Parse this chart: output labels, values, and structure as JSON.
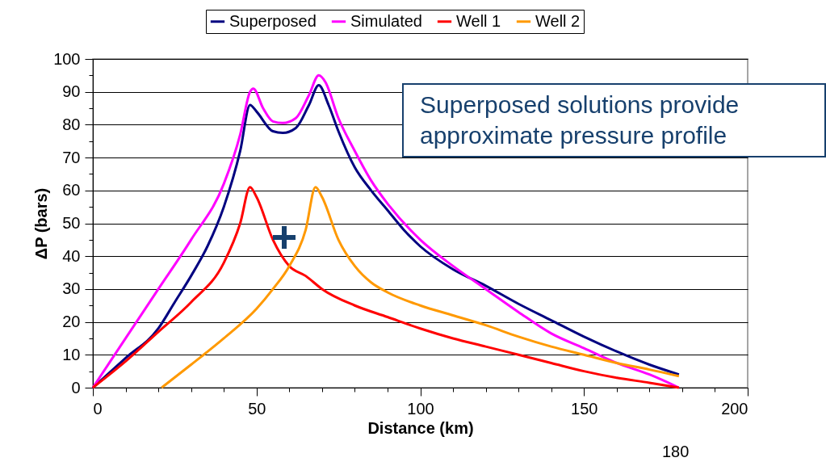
{
  "chart_data": {
    "type": "line",
    "xlabel": "Distance (km)",
    "ylabel": "ΔP (bars)",
    "xlim": [
      0,
      200
    ],
    "ylim": [
      0,
      100
    ],
    "xticks": [
      0,
      {
        "value": 10,
        "label": null
      },
      {
        "value": 20,
        "label": null
      },
      {
        "value": 30,
        "label": null
      },
      {
        "value": 40,
        "label": null
      },
      50,
      {
        "value": 60,
        "label": null
      },
      {
        "value": 70,
        "label": null
      },
      {
        "value": 80,
        "label": null
      },
      {
        "value": 90,
        "label": null
      },
      100,
      {
        "value": 110,
        "label": null
      },
      {
        "value": 120,
        "label": null
      },
      {
        "value": 130,
        "label": null
      },
      {
        "value": 140,
        "label": null
      },
      150,
      {
        "value": 160,
        "label": null
      },
      {
        "value": 170,
        "label": null
      },
      {
        "value": 180,
        "label": null
      },
      {
        "value": 190,
        "label": null
      },
      200
    ],
    "yticks": [
      0,
      {
        "value": 5,
        "label": null
      },
      10,
      {
        "value": 15,
        "label": null
      },
      20,
      {
        "value": 25,
        "label": null
      },
      30,
      {
        "value": 35,
        "label": null
      },
      40,
      {
        "value": 45,
        "label": null
      },
      50,
      {
        "value": 55,
        "label": null
      },
      60,
      {
        "value": 65,
        "label": null
      },
      70,
      {
        "value": 75,
        "label": null
      },
      80,
      {
        "value": 85,
        "label": null
      },
      90,
      {
        "value": 95,
        "label": null
      },
      100
    ],
    "grid": "y",
    "legend": "top",
    "marker": "none",
    "line_style": "solid",
    "annotations": [
      "Superposed solutions provide approximate pressure profile",
      "180"
    ],
    "series": [
      {
        "name": "Superposed",
        "color": "#000080",
        "x": [
          0,
          10,
          20,
          25,
          30,
          35,
          40,
          45,
          48,
          50,
          55,
          58,
          62,
          66,
          69,
          72,
          75,
          80,
          85,
          90,
          95,
          100,
          110,
          120,
          130,
          140,
          150,
          160,
          170,
          179
        ],
        "values": [
          0,
          9,
          18,
          26,
          34,
          43,
          55,
          72,
          86,
          84,
          78,
          77.5,
          79,
          86,
          92,
          86,
          78,
          67,
          60,
          54,
          48,
          43,
          36,
          31,
          25.5,
          20.5,
          15.5,
          11,
          7,
          4
        ]
      },
      {
        "name": "Simulated",
        "color": "#ff00ff",
        "x": [
          0,
          10,
          20,
          30,
          40,
          45,
          48,
          49,
          52,
          55,
          58,
          62,
          66,
          69,
          71,
          75,
          80,
          85,
          90,
          100,
          110,
          120,
          130,
          140,
          150,
          160,
          170,
          179
        ],
        "values": [
          0,
          15,
          30,
          45,
          62,
          77,
          90,
          91,
          85,
          81,
          80.5,
          82,
          89,
          95,
          93,
          82,
          72,
          63,
          56,
          45,
          37,
          30,
          23,
          16.5,
          12,
          7.5,
          4,
          0
        ]
      },
      {
        "name": "Well 1",
        "color": "#ff0000",
        "x": [
          0,
          10,
          20,
          30,
          40,
          45,
          48,
          50,
          55,
          60,
          65,
          70,
          80,
          90,
          100,
          110,
          120,
          130,
          140,
          150,
          160,
          170,
          179
        ],
        "values": [
          0,
          8,
          17,
          26,
          38,
          50,
          61,
          58,
          45,
          37,
          34,
          30,
          25,
          21.5,
          18,
          15,
          12.5,
          10,
          7.5,
          5,
          3,
          1.5,
          0
        ]
      },
      {
        "name": "Well 2",
        "color": "#ff9900",
        "x": [
          21,
          30,
          40,
          50,
          55,
          60,
          65,
          68,
          70,
          75,
          80,
          85,
          90,
          100,
          110,
          120,
          130,
          140,
          150,
          160,
          170,
          179
        ],
        "values": [
          0,
          7,
          15,
          24,
          30,
          37,
          48,
          61,
          58,
          45,
          37,
          32,
          29,
          25,
          22,
          19,
          15.5,
          12.5,
          10,
          7.5,
          5.5,
          3.5
        ]
      }
    ]
  }
}
